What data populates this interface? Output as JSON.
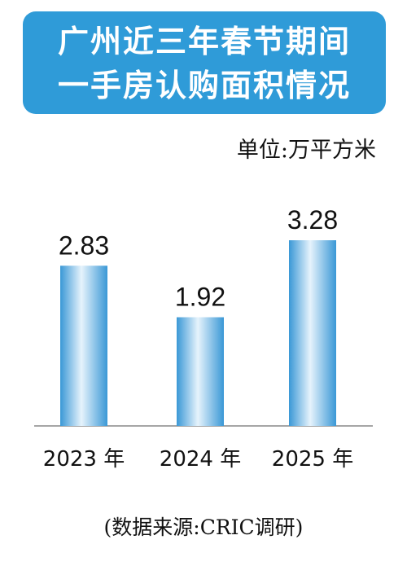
{
  "title": {
    "line1": "广州近三年春节期间",
    "line2": "一手房认购面积情况"
  },
  "unit_label": "单位:万平方米",
  "source_label": "(数据来源:CRIC调研)",
  "colors": {
    "title_bg": "#2f9bd8",
    "bar_light": "#e6f3fc",
    "bar_dark": "#3a98d6"
  },
  "chart_data": {
    "type": "bar",
    "categories": [
      "2023 年",
      "2024 年",
      "2025 年"
    ],
    "values": [
      2.83,
      1.92,
      3.28
    ],
    "value_labels": [
      "2.83",
      "1.92",
      "3.28"
    ],
    "title": "广州近三年春节期间一手房认购面积情况",
    "xlabel": "",
    "ylabel": "单位:万平方米",
    "ylim": [
      0,
      3.6
    ],
    "grid": false,
    "legend": "none"
  }
}
